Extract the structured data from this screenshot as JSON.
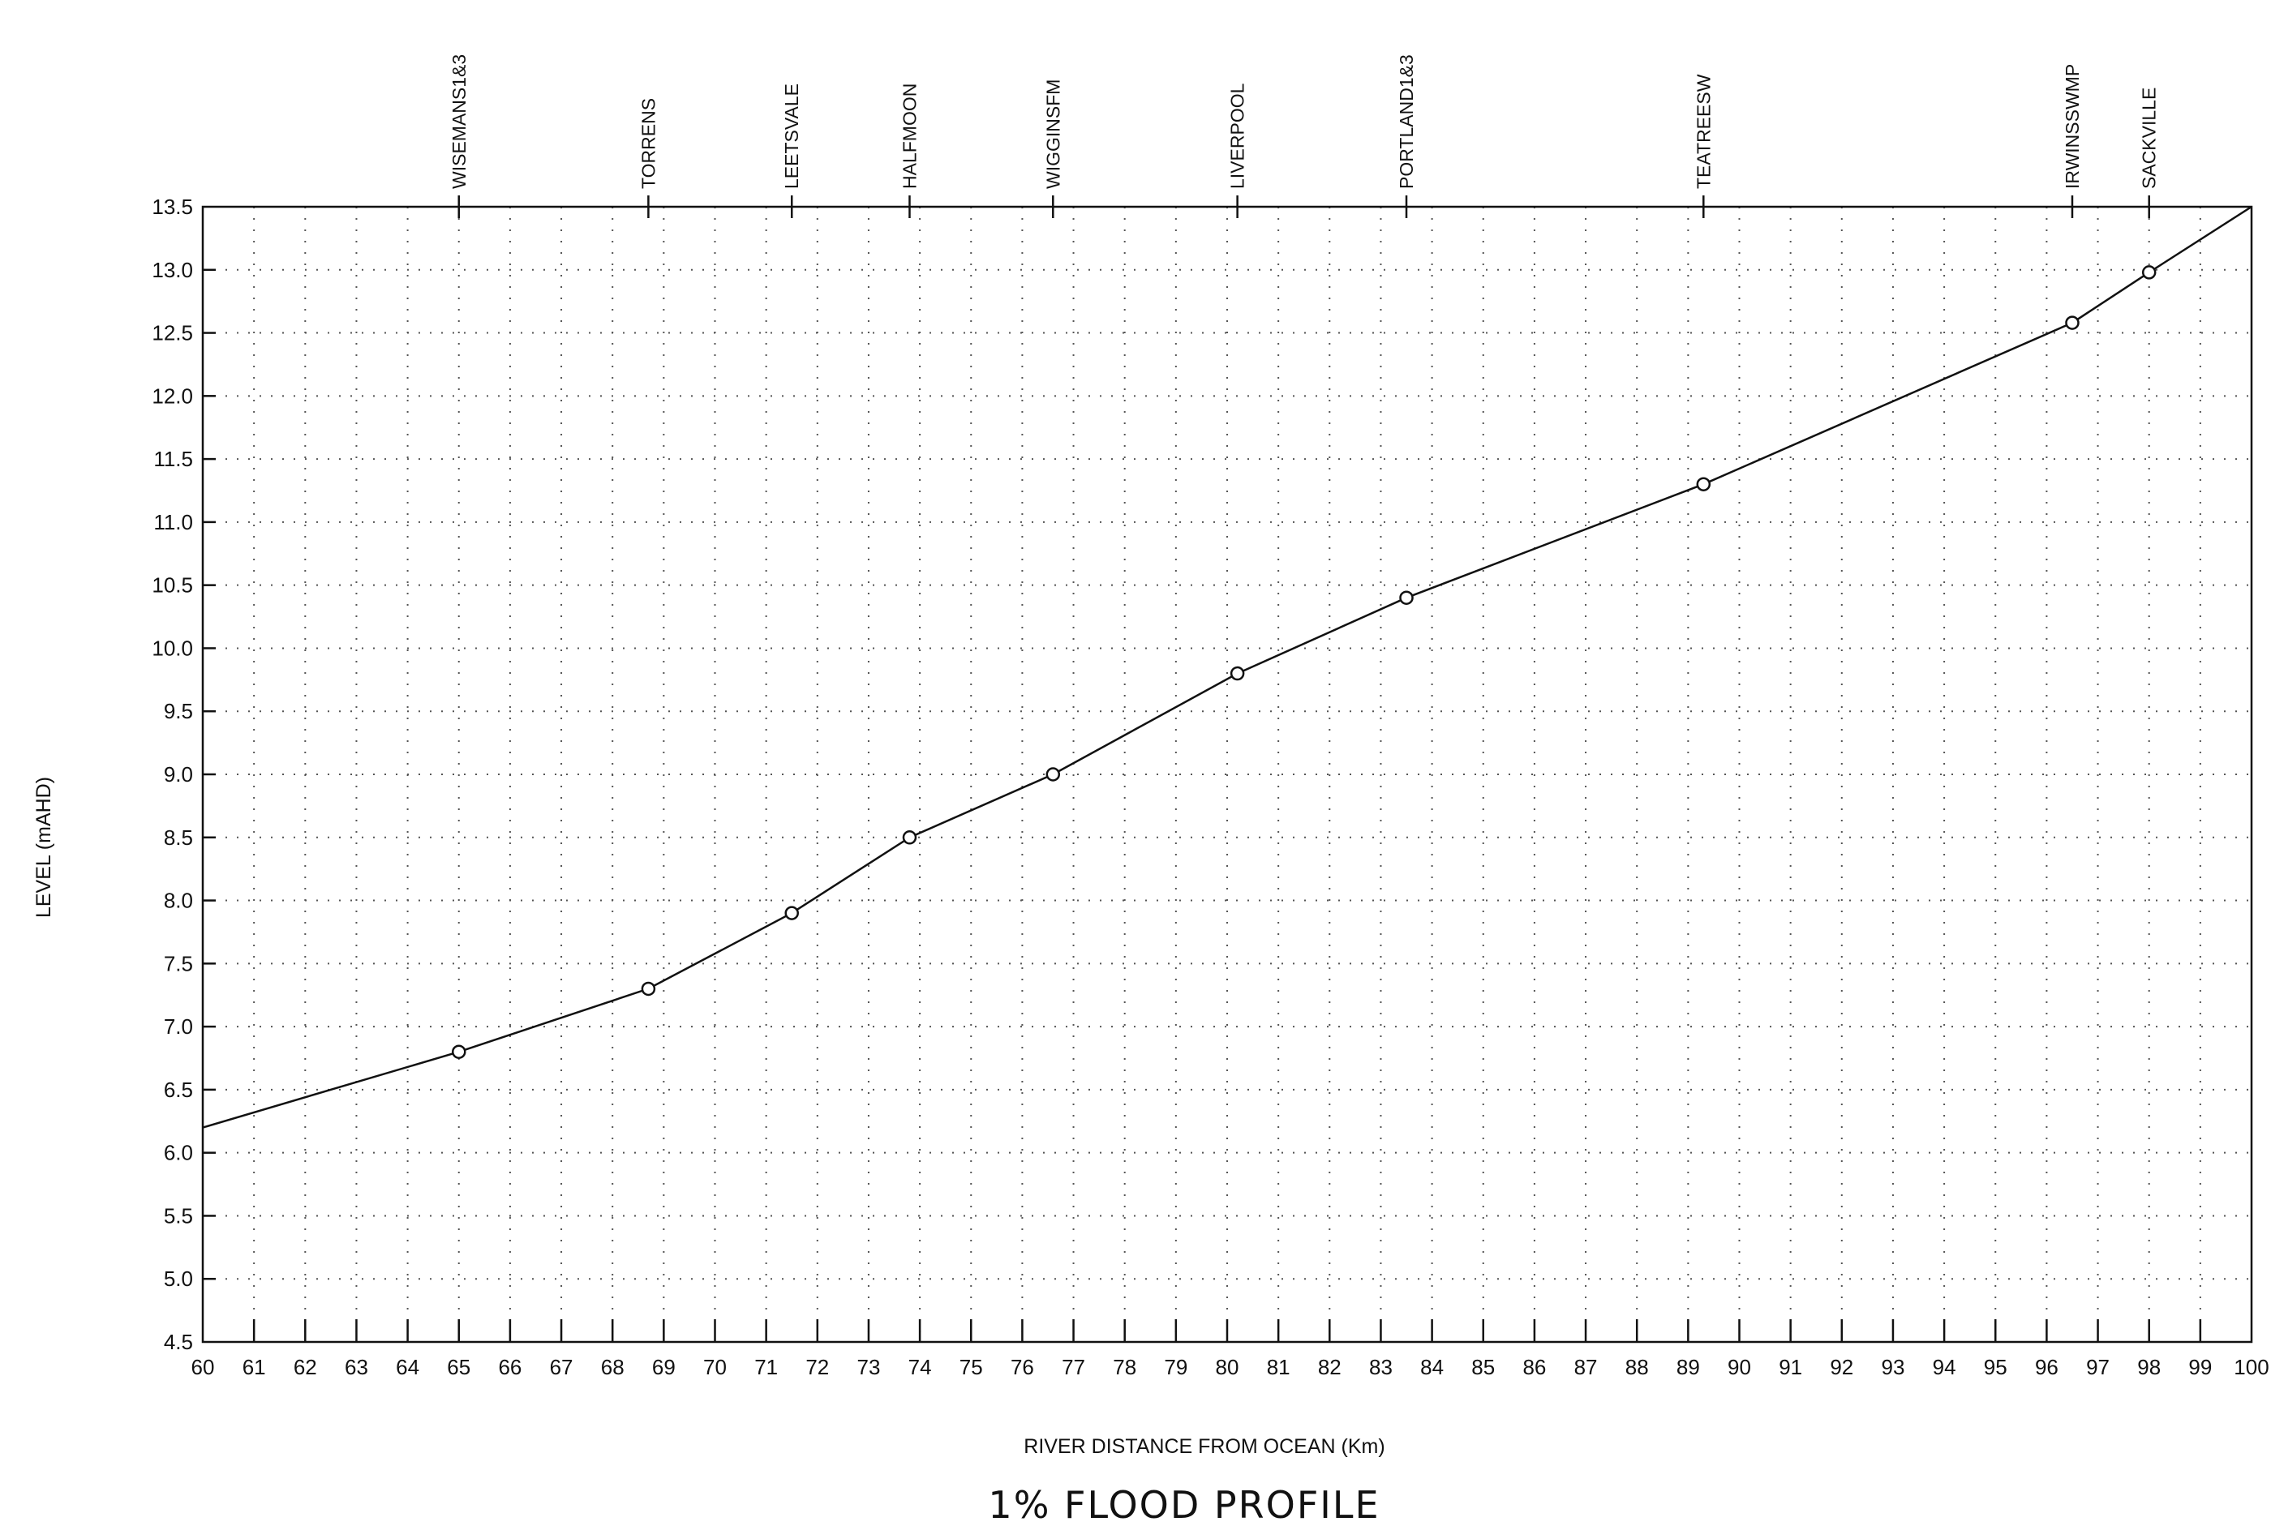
{
  "chart_data": {
    "type": "line",
    "title": "1% FLOOD PROFILE",
    "xlabel": "RIVER DISTANCE FROM OCEAN (Km)",
    "ylabel": "LEVEL (mAHD)",
    "xlim": [
      60,
      100
    ],
    "ylim": [
      4.5,
      13.5
    ],
    "x_ticks": [
      60,
      61,
      62,
      63,
      64,
      65,
      66,
      67,
      68,
      69,
      70,
      71,
      72,
      73,
      74,
      75,
      76,
      77,
      78,
      79,
      80,
      81,
      82,
      83,
      84,
      85,
      86,
      87,
      88,
      89,
      90,
      91,
      92,
      93,
      94,
      95,
      96,
      97,
      98,
      99,
      100
    ],
    "y_ticks": [
      "4.5",
      "5.0",
      "5.5",
      "6.0",
      "6.5",
      "7.0",
      "7.5",
      "8.0",
      "8.5",
      "9.0",
      "9.5",
      "10.0",
      "10.5",
      "11.0",
      "11.5",
      "12.0",
      "12.5",
      "13.0",
      "13.5"
    ],
    "grid": true,
    "series": [
      {
        "line": [
          {
            "x": 60.0,
            "y": 6.2
          },
          {
            "x": 65.0,
            "y": 6.8
          },
          {
            "x": 68.7,
            "y": 7.3
          },
          {
            "x": 71.5,
            "y": 7.9
          },
          {
            "x": 73.8,
            "y": 8.5
          },
          {
            "x": 76.6,
            "y": 9.0
          },
          {
            "x": 80.2,
            "y": 9.8
          },
          {
            "x": 83.5,
            "y": 10.4
          },
          {
            "x": 89.3,
            "y": 11.3
          },
          {
            "x": 96.5,
            "y": 12.58
          },
          {
            "x": 98.0,
            "y": 12.98
          },
          {
            "x": 100.0,
            "y": 13.5
          }
        ],
        "markers": [
          {
            "x": 65.0,
            "y": 6.8
          },
          {
            "x": 68.7,
            "y": 7.3
          },
          {
            "x": 71.5,
            "y": 7.9
          },
          {
            "x": 73.8,
            "y": 8.5
          },
          {
            "x": 76.6,
            "y": 9.0
          },
          {
            "x": 80.2,
            "y": 9.8
          },
          {
            "x": 83.5,
            "y": 10.4
          },
          {
            "x": 89.3,
            "y": 11.3
          },
          {
            "x": 96.5,
            "y": 12.58
          },
          {
            "x": 98.0,
            "y": 12.98
          }
        ]
      }
    ],
    "stations": [
      {
        "name": "WISEMANS1&3",
        "x": 65.0
      },
      {
        "name": "TORRENS",
        "x": 68.7
      },
      {
        "name": "LEETSVALE",
        "x": 71.5
      },
      {
        "name": "HALFMOON",
        "x": 73.8
      },
      {
        "name": "WIGGINSFM",
        "x": 76.6
      },
      {
        "name": "LIVERPOOL",
        "x": 80.2
      },
      {
        "name": "PORTLAND1&3",
        "x": 83.5
      },
      {
        "name": "TEATREESW",
        "x": 89.3
      },
      {
        "name": "IRWINSSWMP",
        "x": 96.5
      },
      {
        "name": "SACKVILLE",
        "x": 98.0
      }
    ]
  }
}
